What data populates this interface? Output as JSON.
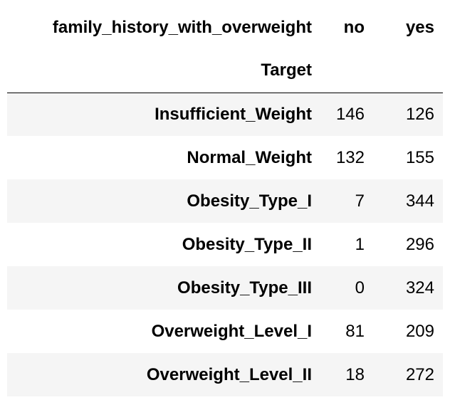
{
  "table": {
    "columns_name": "family_history_with_overweight",
    "index_name": "Target",
    "columns": [
      "no",
      "yes"
    ],
    "rows": [
      {
        "label": "Insufficient_Weight",
        "values": [
          "146",
          "126"
        ]
      },
      {
        "label": "Normal_Weight",
        "values": [
          "132",
          "155"
        ]
      },
      {
        "label": "Obesity_Type_I",
        "values": [
          "7",
          "344"
        ]
      },
      {
        "label": "Obesity_Type_II",
        "values": [
          "1",
          "296"
        ]
      },
      {
        "label": "Obesity_Type_III",
        "values": [
          "0",
          "324"
        ]
      },
      {
        "label": "Overweight_Level_I",
        "values": [
          "81",
          "209"
        ]
      },
      {
        "label": "Overweight_Level_II",
        "values": [
          "18",
          "272"
        ]
      }
    ]
  },
  "colors": {
    "stripe": "#f5f5f5",
    "background": "#ffffff",
    "text": "#000000"
  }
}
